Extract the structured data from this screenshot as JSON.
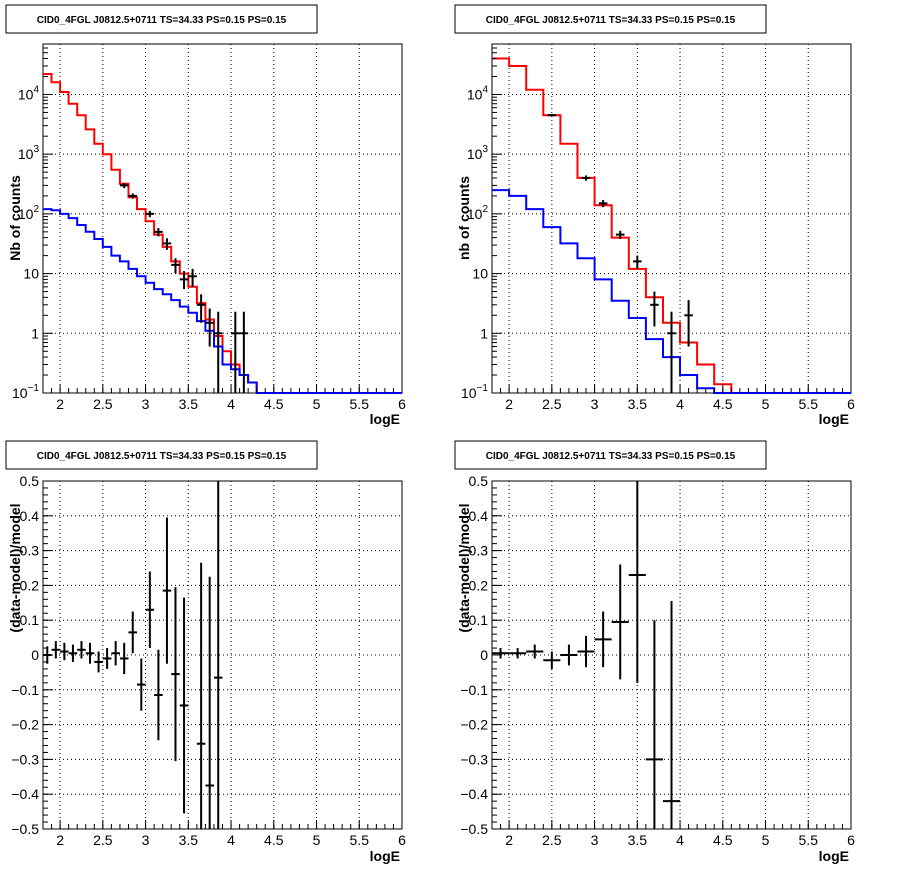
{
  "colors": {
    "data": "#000000",
    "total_model": "#ff0000",
    "component_model": "#0000ff",
    "grid": "#000000"
  },
  "chart_data": [
    {
      "type": "line",
      "title": "CID0_4FGL J0812.5+0711 TS=34.33 PS=0.15 PS=0.15",
      "xlabel": "logE",
      "ylabel": "Nb of counts",
      "yscale": "log",
      "xlim": [
        1.8,
        6.0
      ],
      "ylim": [
        0.1,
        70000
      ],
      "grid": true,
      "xticks": [
        "2",
        "2.5",
        "3",
        "3.5",
        "4",
        "4.5",
        "5",
        "5.5",
        "6"
      ],
      "yticks": [
        {
          "v": 0.1,
          "base": "10",
          "exp": "−1"
        },
        {
          "v": 1,
          "label": "1"
        },
        {
          "v": 10,
          "label": "10"
        },
        {
          "v": 100,
          "base": "10",
          "exp": "2"
        },
        {
          "v": 1000,
          "base": "10",
          "exp": "3"
        },
        {
          "v": 10000,
          "base": "10",
          "exp": "4"
        }
      ],
      "series": [
        {
          "color": "#ff0000",
          "edges": [
            1.8,
            1.9,
            2.0,
            2.1,
            2.2,
            2.3,
            2.4,
            2.5,
            2.6,
            2.7,
            2.8,
            2.9,
            3.0,
            3.1,
            3.2,
            3.3,
            3.4,
            3.5,
            3.6,
            3.7,
            3.8,
            3.9,
            4.0,
            4.1,
            4.2,
            4.3,
            4.4,
            4.5,
            4.6,
            4.7,
            4.8,
            4.9,
            5.0,
            5.1,
            5.2,
            5.3,
            5.4,
            5.5,
            5.6,
            5.7,
            5.8,
            5.9,
            6.0
          ],
          "values": [
            22000,
            16000,
            11000,
            7000,
            4500,
            2600,
            1500,
            1000,
            550,
            320,
            190,
            120,
            75,
            45,
            28,
            16,
            10,
            6,
            3.2,
            1.7,
            0.9,
            0.5,
            0.3,
            0.2,
            0.15,
            0.1,
            0.1,
            0.1,
            0.1,
            0.1,
            0.1,
            0.1,
            0.1,
            0.1,
            0.1,
            0.1,
            0.1,
            0.1,
            0.1,
            0.1,
            0.1,
            0.1
          ]
        },
        {
          "color": "#0000ff",
          "edges": [
            1.8,
            1.9,
            2.0,
            2.1,
            2.2,
            2.3,
            2.4,
            2.5,
            2.6,
            2.7,
            2.8,
            2.9,
            3.0,
            3.1,
            3.2,
            3.3,
            3.4,
            3.5,
            3.6,
            3.7,
            3.8,
            3.9,
            4.0,
            4.1,
            4.2,
            4.3,
            4.4,
            4.5,
            4.6,
            4.7,
            4.8,
            4.9,
            5.0,
            5.1,
            5.2,
            5.3,
            5.4,
            5.5,
            5.6,
            5.7,
            5.8,
            5.9,
            6.0
          ],
          "values": [
            120,
            115,
            100,
            85,
            65,
            50,
            38,
            28,
            20,
            16,
            12,
            9,
            7,
            5.5,
            4.5,
            3.6,
            2.8,
            2.2,
            1.6,
            1.1,
            0.6,
            0.3,
            0.25,
            0.2,
            0.15,
            0.1,
            0.1,
            0.1,
            0.1,
            0.1,
            0.1,
            0.1,
            0.1,
            0.1,
            0.1,
            0.1,
            0.1,
            0.1,
            0.1,
            0.1,
            0.1,
            0.1
          ]
        }
      ],
      "points": [
        {
          "x": 2.75,
          "y": 300,
          "lo": 270,
          "hi": 330
        },
        {
          "x": 2.85,
          "y": 200,
          "lo": 180,
          "hi": 220
        },
        {
          "x": 3.05,
          "y": 100,
          "lo": 88,
          "hi": 112
        },
        {
          "x": 3.15,
          "y": 50,
          "lo": 42,
          "hi": 58
        },
        {
          "x": 3.25,
          "y": 32,
          "lo": 25,
          "hi": 39
        },
        {
          "x": 3.35,
          "y": 14,
          "lo": 10,
          "hi": 18
        },
        {
          "x": 3.45,
          "y": 8,
          "lo": 5.5,
          "hi": 11
        },
        {
          "x": 3.55,
          "y": 9,
          "lo": 6,
          "hi": 12
        },
        {
          "x": 3.65,
          "y": 3,
          "lo": 1.5,
          "hi": 4.5
        },
        {
          "x": 3.75,
          "y": 1.5,
          "lo": 0.6,
          "hi": 2.6
        },
        {
          "x": 3.85,
          "y": 1,
          "lo": 0.1,
          "hi": 2.3
        },
        {
          "x": 4.05,
          "y": 1,
          "lo": 0.1,
          "hi": 2.3
        },
        {
          "x": 4.15,
          "y": 1,
          "lo": 0.1,
          "hi": 2.3
        }
      ]
    },
    {
      "type": "line",
      "title": "CID0_4FGL J0812.5+0711 TS=34.33 PS=0.15 PS=0.15",
      "xlabel": "logE",
      "ylabel": "nb of counts",
      "yscale": "log",
      "xlim": [
        1.8,
        6.0
      ],
      "ylim": [
        0.1,
        70000
      ],
      "grid": true,
      "xticks": [
        "2",
        "2.5",
        "3",
        "3.5",
        "4",
        "4.5",
        "5",
        "5.5",
        "6"
      ],
      "yticks": [
        {
          "v": 0.1,
          "base": "10",
          "exp": "−1"
        },
        {
          "v": 1,
          "label": "1"
        },
        {
          "v": 10,
          "label": "10"
        },
        {
          "v": 100,
          "base": "10",
          "exp": "2"
        },
        {
          "v": 1000,
          "base": "10",
          "exp": "3"
        },
        {
          "v": 10000,
          "base": "10",
          "exp": "4"
        }
      ],
      "series": [
        {
          "color": "#ff0000",
          "edges": [
            1.8,
            2.0,
            2.2,
            2.4,
            2.6,
            2.8,
            3.0,
            3.2,
            3.4,
            3.6,
            3.8,
            4.0,
            4.2,
            4.4,
            4.6,
            4.8,
            5.0,
            5.2,
            5.4,
            5.6,
            5.8,
            6.0
          ],
          "values": [
            40000,
            30000,
            12000,
            4500,
            1500,
            400,
            140,
            40,
            12,
            4,
            1.5,
            0.7,
            0.3,
            0.14,
            0.1,
            0.1,
            0.1,
            0.1,
            0.1,
            0.1,
            0.1
          ]
        },
        {
          "color": "#0000ff",
          "edges": [
            1.8,
            2.0,
            2.2,
            2.4,
            2.6,
            2.8,
            3.0,
            3.2,
            3.4,
            3.6,
            3.8,
            4.0,
            4.2,
            4.4,
            4.6,
            4.8,
            5.0,
            5.2,
            5.4,
            5.6,
            5.8,
            6.0
          ],
          "values": [
            250,
            200,
            120,
            60,
            32,
            18,
            8,
            3.5,
            1.8,
            0.8,
            0.4,
            0.2,
            0.12,
            0.1,
            0.1,
            0.1,
            0.1,
            0.1,
            0.1,
            0.1,
            0.1
          ]
        }
      ],
      "points": [
        {
          "x": 2.5,
          "y": 4500,
          "lo": 4300,
          "hi": 4700
        },
        {
          "x": 2.9,
          "y": 400,
          "lo": 360,
          "hi": 440
        },
        {
          "x": 3.1,
          "y": 150,
          "lo": 130,
          "hi": 170
        },
        {
          "x": 3.3,
          "y": 45,
          "lo": 38,
          "hi": 52
        },
        {
          "x": 3.5,
          "y": 16,
          "lo": 12,
          "hi": 20
        },
        {
          "x": 3.7,
          "y": 3,
          "lo": 1.3,
          "hi": 5
        },
        {
          "x": 3.9,
          "y": 1,
          "lo": 0.1,
          "hi": 2.3
        },
        {
          "x": 4.1,
          "y": 2,
          "lo": 0.6,
          "hi": 3.6
        }
      ]
    },
    {
      "type": "scatter",
      "title": "CID0_4FGL J0812.5+0711 TS=34.33 PS=0.15 PS=0.15",
      "xlabel": "logE",
      "ylabel": "(data-model)/model",
      "xlim": [
        1.8,
        6.0
      ],
      "ylim": [
        -0.5,
        0.5
      ],
      "grid": true,
      "xticks": [
        "2",
        "2.5",
        "3",
        "3.5",
        "4",
        "4.5",
        "5",
        "5.5",
        "6"
      ],
      "yticks": [
        "−0.5",
        "−0.4",
        "−0.3",
        "−0.2",
        "−0.1",
        "0",
        "0.1",
        "0.2",
        "0.3",
        "0.4",
        "0.5"
      ],
      "xerr": 0.05,
      "points": [
        {
          "x": 1.85,
          "y": 0.0,
          "err": 0.025
        },
        {
          "x": 1.95,
          "y": 0.015,
          "err": 0.025
        },
        {
          "x": 2.05,
          "y": 0.01,
          "err": 0.025
        },
        {
          "x": 2.15,
          "y": 0.005,
          "err": 0.025
        },
        {
          "x": 2.25,
          "y": 0.015,
          "err": 0.025
        },
        {
          "x": 2.35,
          "y": 0.005,
          "err": 0.03
        },
        {
          "x": 2.45,
          "y": -0.02,
          "err": 0.03
        },
        {
          "x": 2.55,
          "y": -0.01,
          "err": 0.03
        },
        {
          "x": 2.65,
          "y": 0.005,
          "err": 0.035
        },
        {
          "x": 2.75,
          "y": -0.01,
          "err": 0.045
        },
        {
          "x": 2.85,
          "y": 0.065,
          "err": 0.06
        },
        {
          "x": 2.95,
          "y": -0.085,
          "err": 0.075
        },
        {
          "x": 3.05,
          "y": 0.13,
          "err": 0.11
        },
        {
          "x": 3.15,
          "y": -0.115,
          "err": 0.13
        },
        {
          "x": 3.25,
          "y": 0.185,
          "err": 0.21
        },
        {
          "x": 3.35,
          "y": -0.055,
          "err": 0.25
        },
        {
          "x": 3.45,
          "y": -0.145,
          "err": 0.31
        },
        {
          "x": 3.65,
          "y": -0.255,
          "err": 0.52
        },
        {
          "x": 3.75,
          "y": -0.375,
          "err": 0.6
        },
        {
          "x": 3.85,
          "y": -0.065,
          "err": 0.65
        }
      ]
    },
    {
      "type": "scatter",
      "title": "CID0_4FGL J0812.5+0711 TS=34.33 PS=0.15 PS=0.15",
      "xlabel": "logE",
      "ylabel": "(data-model)/model",
      "xlim": [
        1.8,
        6.0
      ],
      "ylim": [
        -0.5,
        0.5
      ],
      "grid": true,
      "xticks": [
        "2",
        "2.5",
        "3",
        "3.5",
        "4",
        "4.5",
        "5",
        "5.5",
        "6"
      ],
      "yticks": [
        "−0.5",
        "−0.4",
        "−0.3",
        "−0.2",
        "−0.1",
        "0",
        "0.1",
        "0.2",
        "0.3",
        "0.4",
        "0.5"
      ],
      "xerr": 0.1,
      "points": [
        {
          "x": 1.9,
          "y": 0.005,
          "err": 0.015
        },
        {
          "x": 2.1,
          "y": 0.005,
          "err": 0.015
        },
        {
          "x": 2.3,
          "y": 0.01,
          "err": 0.02
        },
        {
          "x": 2.5,
          "y": -0.015,
          "err": 0.025
        },
        {
          "x": 2.7,
          "y": 0.0,
          "err": 0.03
        },
        {
          "x": 2.9,
          "y": 0.01,
          "err": 0.045
        },
        {
          "x": 3.1,
          "y": 0.045,
          "err": 0.08
        },
        {
          "x": 3.3,
          "y": 0.095,
          "err": 0.165
        },
        {
          "x": 3.5,
          "y": 0.23,
          "err": 0.31
        },
        {
          "x": 3.7,
          "y": -0.3,
          "err": 0.4
        },
        {
          "x": 3.9,
          "y": -0.42,
          "err": 0.575
        }
      ]
    }
  ]
}
